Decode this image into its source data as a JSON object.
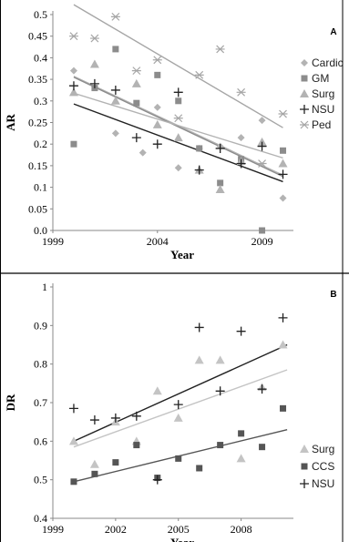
{
  "chart_data": [
    {
      "type": "scatter",
      "panel_label": "A",
      "xlabel": "Year",
      "ylabel": "AR",
      "xlim": [
        1999,
        2010.5
      ],
      "ylim": [
        0,
        0.5
      ],
      "xticks": [
        "1999",
        "2004",
        "2009"
      ],
      "yticks": [
        "0.0",
        "0.05",
        "0.1",
        "0.15",
        "0.2",
        "0.25",
        "0.3",
        "0.35",
        "0.4",
        "0.45",
        "0.5"
      ],
      "grid": false,
      "legend_position": "right",
      "series": [
        {
          "name": "Cardic",
          "marker": "diamond",
          "color": "#b3b3b3",
          "x": [
            2000,
            2002,
            2003.3,
            2004,
            2005,
            2006,
            2007,
            2008,
            2009,
            2010
          ],
          "y": [
            0.37,
            0.225,
            0.18,
            0.285,
            0.145,
            0.19,
            0.195,
            0.215,
            0.255,
            0.075
          ],
          "trend": [
            [
              2000,
              0.357
            ],
            [
              2010,
              0.128
            ]
          ]
        },
        {
          "name": "GM",
          "marker": "square",
          "color": "#8c8c8c",
          "x": [
            2000,
            2001,
            2002,
            2003,
            2004,
            2005,
            2006,
            2007,
            2008,
            2009,
            2010
          ],
          "y": [
            0.2,
            0.33,
            0.42,
            0.295,
            0.36,
            0.3,
            0.19,
            0.11,
            0.165,
            0.0,
            0.185
          ],
          "trend": [
            [
              2000,
              0.355
            ],
            [
              2010,
              0.125
            ]
          ]
        },
        {
          "name": "Surg",
          "marker": "triangle",
          "color": "#b3b3b3",
          "x": [
            2000,
            2001,
            2002,
            2003,
            2004,
            2005,
            2006,
            2007,
            2008,
            2009,
            2010
          ],
          "y": [
            0.32,
            0.385,
            0.3,
            0.34,
            0.245,
            0.215,
            0.14,
            0.095,
            0.16,
            0.205,
            0.155
          ],
          "trend": [
            [
              2000,
              0.318
            ],
            [
              2010,
              0.168
            ]
          ]
        },
        {
          "name": "NSU",
          "marker": "plus",
          "color": "#222222",
          "x": [
            2000,
            2001,
            2002,
            2003,
            2004,
            2005,
            2006,
            2007,
            2008,
            2009,
            2010
          ],
          "y": [
            0.335,
            0.34,
            0.325,
            0.215,
            0.2,
            0.32,
            0.14,
            0.19,
            0.155,
            0.195,
            0.13
          ],
          "trend": [
            [
              2000,
              0.293
            ],
            [
              2010,
              0.113
            ]
          ]
        },
        {
          "name": "Ped",
          "marker": "asterisk",
          "color": "#a6a6a6",
          "x": [
            2000,
            2001,
            2002,
            2003,
            2004,
            2005,
            2006,
            2007,
            2008,
            2009,
            2010
          ],
          "y": [
            0.45,
            0.445,
            0.495,
            0.37,
            0.395,
            0.26,
            0.36,
            0.42,
            0.32,
            0.155,
            0.27
          ],
          "trend": [
            [
              2000,
              0.523
            ],
            [
              2010,
              0.238
            ]
          ]
        }
      ]
    },
    {
      "type": "scatter",
      "panel_label": "B",
      "xlabel": "Year",
      "ylabel": "DR",
      "xlim": [
        1999,
        2010.5
      ],
      "ylim": [
        0.4,
        1
      ],
      "xticks": [
        "1999",
        "2002",
        "2005",
        "2008"
      ],
      "yticks": [
        "0.4",
        "0.5",
        "0.6",
        "0.7",
        "0.8",
        "0.9",
        "1"
      ],
      "grid": false,
      "legend_position": "right",
      "series": [
        {
          "name": "Surg",
          "marker": "triangle",
          "color": "#c4c4c4",
          "x": [
            2000,
            2001,
            2002,
            2003,
            2004,
            2005,
            2006,
            2007,
            2008,
            2009,
            2010
          ],
          "y": [
            0.6,
            0.54,
            0.65,
            0.6,
            0.73,
            0.66,
            0.81,
            0.81,
            0.555,
            0.74,
            0.85
          ],
          "trend": [
            [
              2000,
              0.585
            ],
            [
              2010.2,
              0.785
            ]
          ]
        },
        {
          "name": "CCS",
          "marker": "square",
          "color": "#555555",
          "x": [
            2000,
            2001,
            2002,
            2003,
            2004,
            2005,
            2006,
            2007,
            2008,
            2009,
            2010
          ],
          "y": [
            0.495,
            0.515,
            0.545,
            0.59,
            0.505,
            0.555,
            0.53,
            0.59,
            0.62,
            0.585,
            0.685
          ],
          "trend": [
            [
              2000,
              0.495
            ],
            [
              2010.2,
              0.63
            ]
          ]
        },
        {
          "name": "NSU",
          "marker": "plus",
          "color": "#222222",
          "x": [
            2000,
            2001,
            2002,
            2003,
            2004,
            2005,
            2006,
            2007,
            2008,
            2009,
            2010
          ],
          "y": [
            0.685,
            0.655,
            0.66,
            0.665,
            0.5,
            0.695,
            0.895,
            0.73,
            0.885,
            0.735,
            0.92
          ],
          "trend": [
            [
              2000,
              0.6
            ],
            [
              2010.2,
              0.85
            ]
          ]
        }
      ]
    }
  ]
}
